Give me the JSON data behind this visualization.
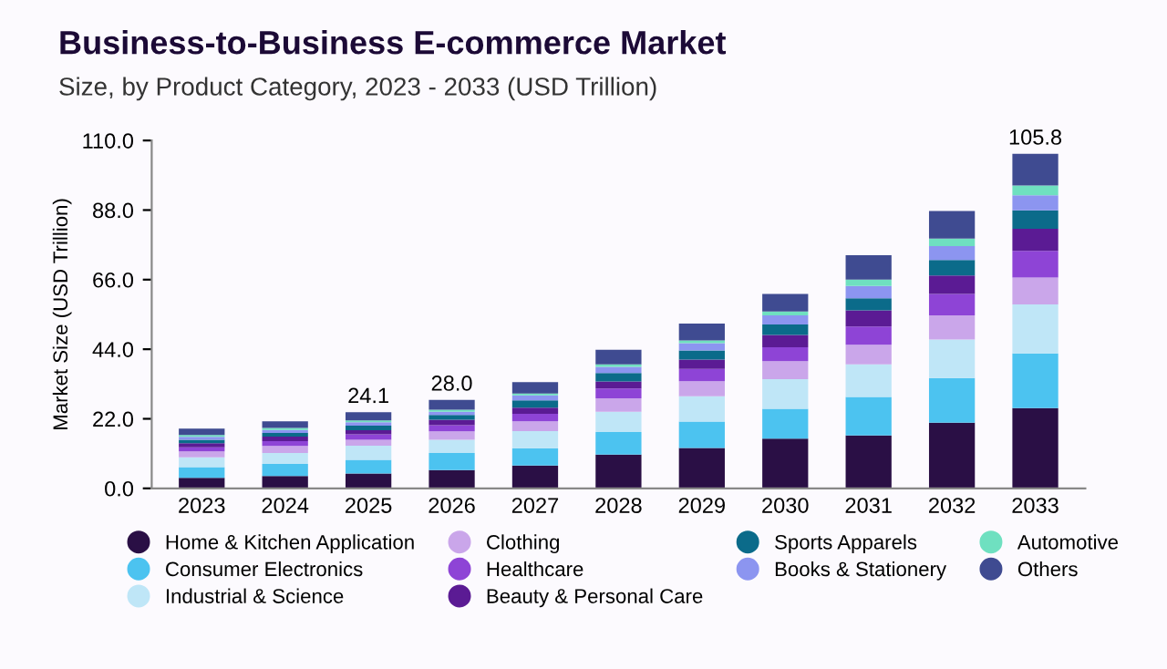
{
  "chart_data": {
    "type": "bar",
    "stacked": true,
    "title": "Business-to-Business E-commerce Market",
    "subtitle": "Size, by Product Category, 2023 - 2033 (USD Trillion)",
    "ylabel": "Market Size (USD Trillion)",
    "categories": [
      "2023",
      "2024",
      "2025",
      "2026",
      "2027",
      "2028",
      "2029",
      "2030",
      "2031",
      "2032",
      "2033"
    ],
    "series": [
      {
        "name": "Home & Kitchen Application",
        "color": "#2a0f45",
        "values": [
          3.3,
          3.9,
          4.7,
          5.8,
          7.2,
          10.7,
          12.8,
          15.7,
          16.7,
          20.8,
          25.4
        ]
      },
      {
        "name": "Consumer Electronics",
        "color": "#4cc3f0",
        "values": [
          3.4,
          3.8,
          4.3,
          5.4,
          5.5,
          7.1,
          8.3,
          9.5,
          12.2,
          14.1,
          17.3
        ]
      },
      {
        "name": "Industrial & Science",
        "color": "#bfe6f7",
        "values": [
          3.1,
          3.5,
          4.5,
          4.2,
          5.4,
          6.4,
          8.0,
          9.3,
          10.3,
          12.2,
          15.5
        ]
      },
      {
        "name": "Clothing",
        "color": "#caa6ea",
        "values": [
          1.9,
          2.2,
          1.9,
          2.6,
          3.1,
          4.3,
          4.8,
          5.7,
          6.2,
          7.6,
          8.5
        ]
      },
      {
        "name": "Healthcare",
        "color": "#8e44d6",
        "values": [
          1.3,
          1.5,
          1.7,
          2.0,
          2.4,
          3.1,
          3.9,
          4.4,
          5.8,
          6.8,
          8.4
        ]
      },
      {
        "name": "Beauty & Personal Care",
        "color": "#5b1b94",
        "values": [
          1.3,
          1.5,
          1.3,
          1.7,
          1.9,
          2.2,
          2.9,
          3.9,
          5.1,
          5.8,
          7.0
        ]
      },
      {
        "name": "Sports Apparels",
        "color": "#0b6b8a",
        "values": [
          1.1,
          1.1,
          1.4,
          1.5,
          2.3,
          2.7,
          2.9,
          3.3,
          3.8,
          4.9,
          5.8
        ]
      },
      {
        "name": "Books & Stationery",
        "color": "#8c95f0",
        "values": [
          0.9,
          1.0,
          1.1,
          1.0,
          1.6,
          1.9,
          2.3,
          2.9,
          3.9,
          4.4,
          4.8
        ]
      },
      {
        "name": "Automotive",
        "color": "#6fe0c0",
        "values": [
          0.6,
          0.6,
          0.6,
          0.7,
          0.6,
          0.8,
          0.9,
          1.2,
          2.0,
          2.4,
          3.1
        ]
      },
      {
        "name": "Others",
        "color": "#3f4b91",
        "values": [
          2.0,
          2.1,
          2.6,
          3.1,
          3.6,
          4.6,
          5.3,
          5.6,
          7.7,
          8.7,
          10.0
        ]
      }
    ],
    "totals": [
      null,
      null,
      "24.1",
      "28.0",
      null,
      null,
      null,
      null,
      null,
      null,
      "105.8"
    ],
    "ylim": [
      0,
      110
    ],
    "yticks": [
      {
        "value": 0,
        "label": "0.0"
      },
      {
        "value": 22,
        "label": "22.0"
      },
      {
        "value": 44,
        "label": "44.0"
      },
      {
        "value": 66,
        "label": "66.0"
      },
      {
        "value": 88,
        "label": "88.0"
      },
      {
        "value": 110,
        "label": "110.0"
      }
    ],
    "grid": false,
    "legend": "bottom"
  }
}
